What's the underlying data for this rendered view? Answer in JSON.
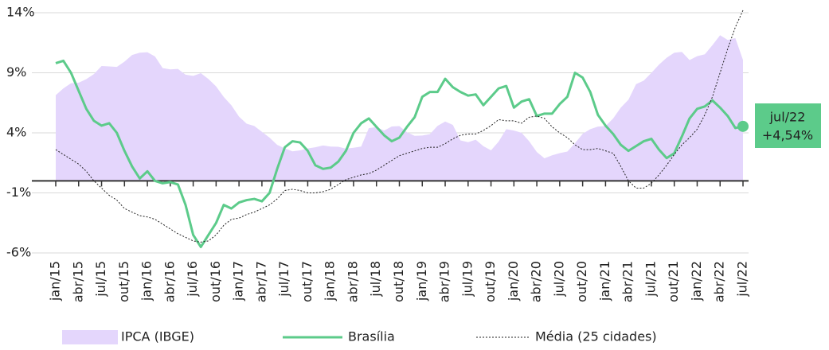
{
  "chart_data": {
    "type": "line",
    "x": [
      "jan/15",
      null,
      null,
      "abr/15",
      null,
      null,
      "jul/15",
      null,
      null,
      "out/15",
      null,
      null,
      "jan/16",
      null,
      null,
      "abr/16",
      null,
      null,
      "jul/16",
      null,
      null,
      "out/16",
      null,
      null,
      "jan/17",
      null,
      null,
      "abr/17",
      null,
      null,
      "jul/17",
      null,
      null,
      "out/17",
      null,
      null,
      "jan/18",
      null,
      null,
      "abr/18",
      null,
      null,
      "jul/18",
      null,
      null,
      "out/18",
      null,
      null,
      "jan/19",
      null,
      null,
      "abr/19",
      null,
      null,
      "jul/19",
      null,
      null,
      "out/19",
      null,
      null,
      "jan/20",
      null,
      null,
      "abr/20",
      null,
      null,
      "jul/20",
      null,
      null,
      "out/20",
      null,
      null,
      "jan/21",
      null,
      null,
      "abr/21",
      null,
      null,
      "jul/21",
      null,
      null,
      "out/21",
      null,
      null,
      "jan/22",
      null,
      null,
      "abr/22",
      null,
      null,
      "jul/22"
    ],
    "series": [
      {
        "name": "IPCA (IBGE)",
        "kind": "area",
        "color": "#e4d6fc",
        "values": [
          7.14,
          7.7,
          8.13,
          8.17,
          8.47,
          8.89,
          9.56,
          9.53,
          9.49,
          9.93,
          10.48,
          10.67,
          10.71,
          10.36,
          9.39,
          9.28,
          9.32,
          8.84,
          8.74,
          8.97,
          8.48,
          7.87,
          6.99,
          6.29,
          5.35,
          4.76,
          4.57,
          4.08,
          3.6,
          3.0,
          2.71,
          2.46,
          2.54,
          2.7,
          2.8,
          2.95,
          2.86,
          2.84,
          2.68,
          2.76,
          2.86,
          4.39,
          4.48,
          4.19,
          4.53,
          4.56,
          4.05,
          3.75,
          3.78,
          3.89,
          4.58,
          4.94,
          4.66,
          3.37,
          3.22,
          3.43,
          2.89,
          2.54,
          3.27,
          4.31,
          4.19,
          4.01,
          3.3,
          2.4,
          1.88,
          2.13,
          2.31,
          2.44,
          3.14,
          3.92,
          4.31,
          4.52,
          4.56,
          5.2,
          6.1,
          6.76,
          8.06,
          8.35,
          8.99,
          9.68,
          10.25,
          10.67,
          10.74,
          10.06,
          10.38,
          10.54,
          11.3,
          12.13,
          11.73,
          11.89,
          10.07
        ]
      },
      {
        "name": "Brasília",
        "kind": "line",
        "color": "#5ccb8a",
        "values": [
          9.8,
          10.0,
          9.0,
          7.5,
          6.0,
          5.0,
          4.6,
          4.8,
          4.0,
          2.5,
          1.2,
          0.2,
          0.8,
          0.0,
          -0.2,
          -0.1,
          -0.3,
          -2.0,
          -4.5,
          -5.5,
          -4.5,
          -3.5,
          -2.0,
          -2.3,
          -1.8,
          -1.6,
          -1.5,
          -1.7,
          -1.0,
          1.0,
          2.8,
          3.3,
          3.2,
          2.5,
          1.3,
          1.0,
          1.1,
          1.6,
          2.5,
          4.0,
          4.8,
          5.2,
          4.5,
          3.8,
          3.3,
          3.6,
          4.5,
          5.3,
          7.0,
          7.4,
          7.4,
          8.5,
          7.8,
          7.4,
          7.1,
          7.2,
          6.3,
          7.0,
          7.7,
          7.9,
          6.1,
          6.6,
          6.8,
          5.4,
          5.6,
          5.6,
          6.4,
          7.0,
          9.0,
          8.6,
          7.4,
          5.5,
          4.6,
          3.9,
          3.0,
          2.5,
          2.9,
          3.3,
          3.5,
          2.6,
          1.9,
          2.3,
          3.7,
          5.2,
          6.0,
          6.2,
          6.7,
          6.1,
          5.4,
          4.4,
          4.54
        ]
      },
      {
        "name": "Média (25 cidades)",
        "kind": "dotted",
        "color": "#222222",
        "values": [
          2.6,
          2.2,
          1.8,
          1.4,
          0.8,
          0.0,
          -0.6,
          -1.2,
          -1.6,
          -2.3,
          -2.6,
          -2.9,
          -3.0,
          -3.2,
          -3.6,
          -4.0,
          -4.4,
          -4.7,
          -5.0,
          -5.1,
          -5.0,
          -4.5,
          -3.7,
          -3.2,
          -3.1,
          -2.8,
          -2.6,
          -2.3,
          -2.0,
          -1.5,
          -0.8,
          -0.7,
          -0.8,
          -1.0,
          -1.0,
          -0.9,
          -0.7,
          -0.3,
          0.1,
          0.3,
          0.5,
          0.6,
          0.9,
          1.3,
          1.7,
          2.1,
          2.3,
          2.5,
          2.7,
          2.8,
          2.8,
          3.1,
          3.5,
          3.8,
          3.9,
          3.9,
          4.2,
          4.6,
          5.1,
          5.0,
          5.0,
          4.8,
          5.3,
          5.4,
          5.2,
          4.5,
          4.0,
          3.6,
          3.0,
          2.6,
          2.6,
          2.7,
          2.5,
          2.3,
          1.2,
          0.0,
          -0.6,
          -0.6,
          -0.2,
          0.5,
          1.3,
          2.2,
          3.0,
          3.6,
          4.3,
          5.5,
          7.0,
          9.0,
          11.0,
          12.8,
          14.2
        ]
      }
    ],
    "annotation": {
      "label": "jul/22",
      "text": "+4,54%"
    },
    "ylim": [
      -6,
      14
    ],
    "yticks": [
      {
        "value": -6,
        "label": "-6%"
      },
      {
        "value": -1,
        "label": "-1%"
      },
      {
        "value": 4,
        "label": "4%"
      },
      {
        "value": 9,
        "label": "9%"
      },
      {
        "value": 14,
        "label": "14%"
      }
    ],
    "grid": true
  }
}
